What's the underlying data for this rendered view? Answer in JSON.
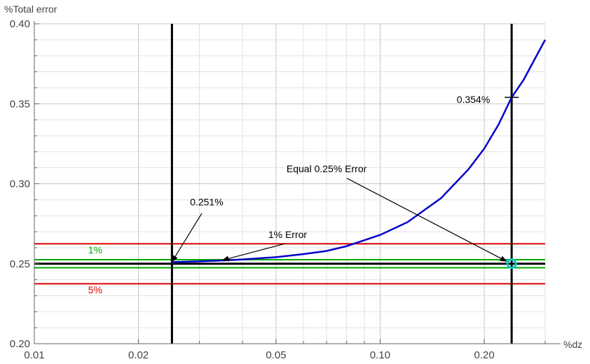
{
  "chart_data": {
    "type": "line",
    "ylabel": "%Total error",
    "xlabel": "%dz",
    "x_scale": "log",
    "xlim": [
      0.01,
      0.3
    ],
    "ylim": [
      0.2,
      0.4
    ],
    "x_ticks": [
      {
        "value": 0.01,
        "label": "0.01"
      },
      {
        "value": 0.02,
        "label": "0.02"
      },
      {
        "value": 0.05,
        "label": "0.05"
      },
      {
        "value": 0.1,
        "label": "0.10"
      },
      {
        "value": 0.2,
        "label": "0.20"
      }
    ],
    "y_ticks": [
      {
        "value": 0.2,
        "label": "0.20"
      },
      {
        "value": 0.25,
        "label": "0.25"
      },
      {
        "value": 0.3,
        "label": "0.30"
      },
      {
        "value": 0.35,
        "label": "0.35"
      },
      {
        "value": 0.4,
        "label": "0.40"
      }
    ],
    "grid": true,
    "series": [
      {
        "color": "#0000cc",
        "x": [
          0.025,
          0.03,
          0.035,
          0.04,
          0.05,
          0.06,
          0.07,
          0.08,
          0.1,
          0.12,
          0.15,
          0.18,
          0.2,
          0.22,
          0.24,
          0.26,
          0.28,
          0.3
        ],
        "y": [
          0.251,
          0.2515,
          0.252,
          0.2527,
          0.2541,
          0.256,
          0.258,
          0.261,
          0.268,
          0.276,
          0.291,
          0.309,
          0.322,
          0.337,
          0.354,
          0.365,
          0.378,
          0.39
        ]
      }
    ],
    "hlines": [
      {
        "y": 0.2625,
        "color": "#dd0000"
      },
      {
        "y": 0.2375,
        "color": "#dd0000"
      },
      {
        "y": 0.2525,
        "color": "#00aa00"
      },
      {
        "y": 0.2475,
        "color": "#00aa00"
      },
      {
        "y": 0.25,
        "color": "#000000"
      }
    ],
    "vlines": [
      {
        "x": 0.025,
        "color": "#000000"
      },
      {
        "x": 0.24,
        "color": "#000000"
      }
    ],
    "marker": {
      "x": 0.24,
      "y": 0.25,
      "color": "#00cccc"
    },
    "cross": {
      "x": 0.24,
      "y": 0.354
    },
    "band_labels": [
      {
        "text": "1%",
        "x": 0.015,
        "y": 0.2565,
        "color": "#00aa00"
      },
      {
        "text": "5%",
        "x": 0.015,
        "y": 0.2315,
        "color": "#dd0000"
      }
    ],
    "annotations": [
      {
        "text": "0.251%",
        "tx": 0.0315,
        "ty": 0.2865,
        "ax": 0.0305,
        "ay": 0.2815,
        "px": 0.025,
        "py": 0.2512
      },
      {
        "text": "1% Error",
        "tx": 0.054,
        "ty": 0.266,
        "ax": 0.053,
        "ay": 0.2625,
        "px": 0.035,
        "py": 0.2522
      },
      {
        "text": "Equal 0.25% Error",
        "tx": 0.07,
        "ty": 0.3073,
        "ax": 0.08,
        "ay": 0.3035,
        "px": 0.232,
        "py": 0.2515
      },
      {
        "text": "0.354%",
        "tx": 0.186,
        "ty": 0.3505,
        "ax": null,
        "ay": null,
        "px": null,
        "py": null
      }
    ]
  }
}
